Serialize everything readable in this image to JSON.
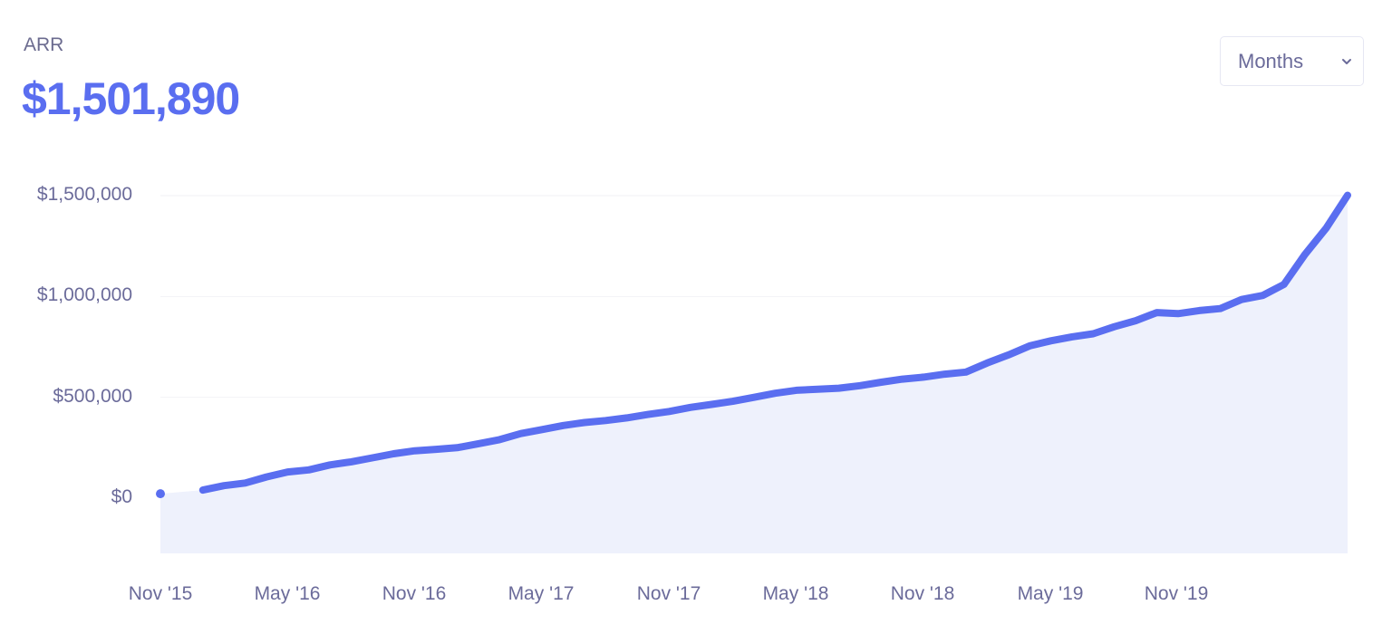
{
  "header": {
    "metric_label": "ARR",
    "metric_value": "$1,501,890"
  },
  "period_select": {
    "selected": "Months",
    "icon": "chevron-down-icon"
  },
  "colors": {
    "line": "#5a6ef0",
    "area": "#eef1fc",
    "text": "#6b6b9a",
    "grid": "#f2f2f6"
  },
  "chart_data": {
    "type": "area",
    "title": "ARR",
    "xlabel": "",
    "ylabel": "",
    "ylim": [
      -270000,
      1500000
    ],
    "grid": true,
    "legend": null,
    "y_ticks": [
      "$1,500,000",
      "$1,000,000",
      "$500,000",
      "$0"
    ],
    "y_tick_values": [
      1500000,
      1000000,
      500000,
      0
    ],
    "x_ticks": [
      "Nov '15",
      "May '16",
      "Nov '16",
      "May '17",
      "Nov '17",
      "May '18",
      "Nov '18",
      "May '19",
      "Nov '19"
    ],
    "x": [
      "2015-11",
      "2015-12",
      "2016-01",
      "2016-02",
      "2016-03",
      "2016-04",
      "2016-05",
      "2016-06",
      "2016-07",
      "2016-08",
      "2016-09",
      "2016-10",
      "2016-11",
      "2016-12",
      "2017-01",
      "2017-02",
      "2017-03",
      "2017-04",
      "2017-05",
      "2017-06",
      "2017-07",
      "2017-08",
      "2017-09",
      "2017-10",
      "2017-11",
      "2017-12",
      "2018-01",
      "2018-02",
      "2018-03",
      "2018-04",
      "2018-05",
      "2018-06",
      "2018-07",
      "2018-08",
      "2018-09",
      "2018-10",
      "2018-11",
      "2018-12",
      "2019-01",
      "2019-02",
      "2019-03",
      "2019-04",
      "2019-05",
      "2019-06",
      "2019-07",
      "2019-08",
      "2019-09",
      "2019-10",
      "2019-11",
      "2019-12",
      "2020-01",
      "2020-02",
      "2020-03",
      "2020-04",
      "2020-05",
      "2020-06",
      "2020-07"
    ],
    "series": [
      {
        "name": "ARR",
        "values": [
          22000,
          null,
          40000,
          62000,
          75000,
          105000,
          130000,
          140000,
          165000,
          180000,
          200000,
          220000,
          235000,
          242000,
          250000,
          270000,
          290000,
          320000,
          340000,
          360000,
          375000,
          385000,
          398000,
          415000,
          430000,
          450000,
          465000,
          480000,
          500000,
          520000,
          535000,
          540000,
          545000,
          558000,
          575000,
          590000,
          600000,
          615000,
          625000,
          670000,
          710000,
          755000,
          780000,
          800000,
          815000,
          850000,
          880000,
          920000,
          915000,
          930000,
          940000,
          985000,
          1005000,
          1060000,
          1210000,
          1340000,
          1501890
        ]
      }
    ]
  }
}
